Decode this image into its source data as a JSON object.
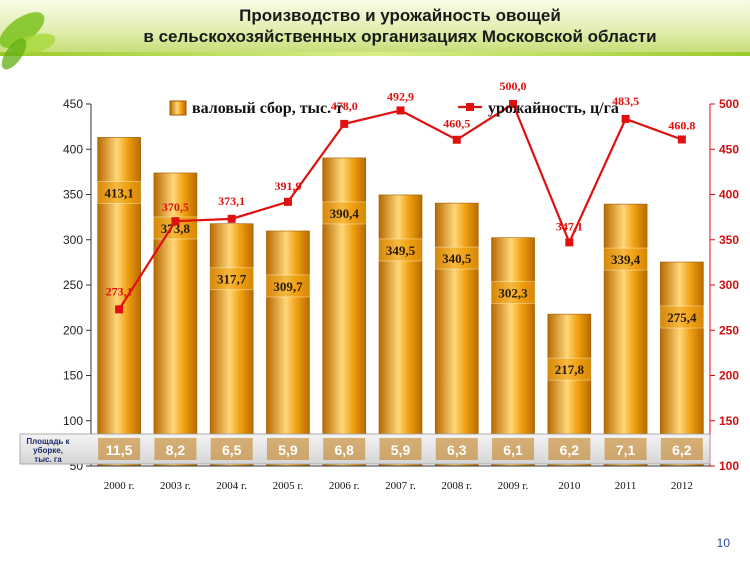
{
  "title_line1": "Производство и урожайность овощей",
  "title_line2": "в сельскохозяйственных организациях  Московской области",
  "slide_number": "10",
  "colors": {
    "bar": "#f0a010",
    "bar_dark": "#b86a00",
    "bar_light": "#ffd77a",
    "line": "#e01010",
    "left_axis_text": "#222222",
    "right_axis_text": "#d01010"
  },
  "chart_data": {
    "type": "bar+line",
    "categories": [
      "2000 г.",
      "2003 г.",
      "2004 г.",
      "2005  г.",
      "2006 г.",
      "2007 г.",
      "2008 г.",
      "2009 г.",
      "2010",
      "2011",
      "2012"
    ],
    "series": [
      {
        "name": "валовый сбор, тыс. т",
        "type": "bar",
        "axis": "left",
        "values": [
          413.1,
          373.8,
          317.7,
          309.7,
          390.4,
          349.5,
          340.5,
          302.3,
          217.8,
          339.4,
          275.4
        ],
        "labels": [
          "413,1",
          "373,8",
          "317,7",
          "309,7",
          "390,4",
          "349,5",
          "340,5",
          "302,3",
          "217,8",
          "339,4",
          "275,4"
        ]
      },
      {
        "name": "урожайность, ц/га",
        "type": "line",
        "axis": "right",
        "values": [
          273.1,
          370.5,
          373.1,
          391.9,
          478.0,
          492.9,
          460.5,
          500.0,
          347.1,
          483.5,
          460.8
        ],
        "labels": [
          "273,1",
          "370,5",
          "373,1",
          "391,9",
          "478,0",
          "492,9",
          "460,5",
          "500,0",
          "347,1",
          "483,5",
          "460.8"
        ]
      }
    ],
    "area_row": {
      "label": "Площадь к уборке, тыс. га",
      "values": [
        "11,5",
        "8,2",
        "6,5",
        "5,9",
        "6,8",
        "5,9",
        "6,3",
        "6,1",
        "6,2",
        "7,1",
        "6,2"
      ]
    },
    "y_left": {
      "min": 50,
      "max": 450,
      "ticks": [
        "50",
        "100",
        "150",
        "200",
        "250",
        "300",
        "350",
        "400",
        "450"
      ]
    },
    "y_right": {
      "min": 100,
      "max": 500,
      "ticks": [
        "100",
        "150",
        "200",
        "250",
        "300",
        "350",
        "400",
        "450",
        "500"
      ]
    },
    "legend_placement": "top",
    "grid": false
  }
}
